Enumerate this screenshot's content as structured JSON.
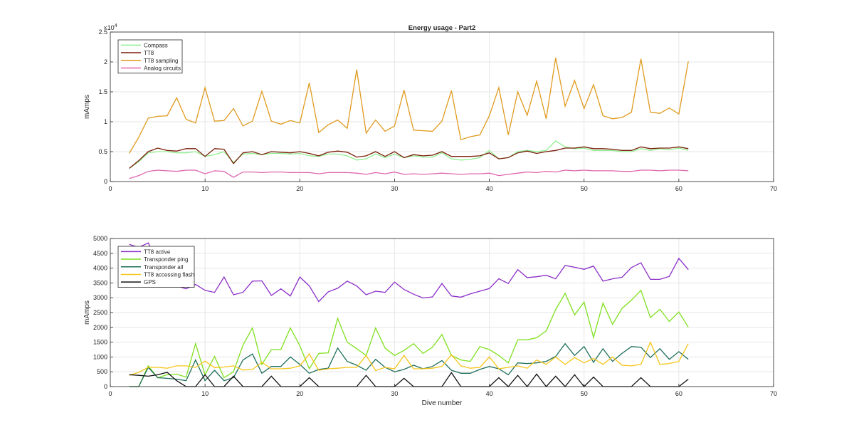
{
  "chart_data": [
    {
      "type": "line",
      "title": "Energy usage - Part2",
      "xlabel": "",
      "ylabel": "mAmps",
      "exponent_label": "×10",
      "exponent_power": "4",
      "xlim": [
        0,
        70
      ],
      "ylim": [
        0,
        2.5
      ],
      "x_ticks": [
        "0",
        "10",
        "20",
        "30",
        "40",
        "50",
        "60",
        "70"
      ],
      "y_ticks": [
        "0",
        "0.5",
        "1",
        "1.5",
        "2",
        "2.5"
      ],
      "grid": true,
      "legend_position": "top-left",
      "x": [
        2,
        3,
        4,
        5,
        6,
        7,
        8,
        9,
        10,
        11,
        12,
        13,
        14,
        15,
        16,
        17,
        18,
        19,
        20,
        21,
        22,
        23,
        24,
        25,
        26,
        27,
        28,
        29,
        30,
        31,
        32,
        33,
        34,
        35,
        36,
        37,
        38,
        39,
        40,
        41,
        42,
        43,
        44,
        45,
        46,
        47,
        48,
        49,
        50,
        51,
        52,
        53,
        54,
        55,
        56,
        57,
        58,
        59,
        60,
        61
      ],
      "series": [
        {
          "name": "Compass",
          "color": "#90ee90",
          "values": [
            0.22,
            0.33,
            0.48,
            0.5,
            0.5,
            0.48,
            0.48,
            0.5,
            0.42,
            0.45,
            0.5,
            0.32,
            0.46,
            0.47,
            0.45,
            0.47,
            0.47,
            0.46,
            0.47,
            0.43,
            0.42,
            0.46,
            0.46,
            0.43,
            0.36,
            0.38,
            0.46,
            0.4,
            0.46,
            0.4,
            0.43,
            0.41,
            0.41,
            0.48,
            0.38,
            0.36,
            0.37,
            0.4,
            0.52,
            0.38,
            0.4,
            0.5,
            0.52,
            0.5,
            0.52,
            0.68,
            0.58,
            0.55,
            0.56,
            0.52,
            0.52,
            0.52,
            0.5,
            0.5,
            0.55,
            0.52,
            0.55,
            0.53,
            0.56,
            0.52
          ]
        },
        {
          "name": "TT8",
          "color": "#7a1e0a",
          "values": [
            0.22,
            0.35,
            0.5,
            0.56,
            0.52,
            0.51,
            0.55,
            0.55,
            0.42,
            0.55,
            0.54,
            0.3,
            0.48,
            0.5,
            0.45,
            0.5,
            0.49,
            0.48,
            0.5,
            0.47,
            0.43,
            0.49,
            0.51,
            0.49,
            0.41,
            0.43,
            0.5,
            0.42,
            0.5,
            0.4,
            0.45,
            0.43,
            0.44,
            0.5,
            0.42,
            0.42,
            0.42,
            0.43,
            0.48,
            0.38,
            0.4,
            0.48,
            0.51,
            0.47,
            0.5,
            0.52,
            0.56,
            0.56,
            0.58,
            0.55,
            0.55,
            0.54,
            0.52,
            0.52,
            0.58,
            0.55,
            0.56,
            0.56,
            0.58,
            0.55
          ]
        },
        {
          "name": "TT8 sampling",
          "color": "#e09a1e",
          "values": [
            0.47,
            0.74,
            1.06,
            1.09,
            1.1,
            1.4,
            1.04,
            0.98,
            1.57,
            1.01,
            1.02,
            1.22,
            0.93,
            1.01,
            1.51,
            1.01,
            0.96,
            1.02,
            0.98,
            1.65,
            0.82,
            0.95,
            1.03,
            0.89,
            1.87,
            0.81,
            1.03,
            0.84,
            0.93,
            1.53,
            0.86,
            0.85,
            0.84,
            1.01,
            1.52,
            0.7,
            0.75,
            0.78,
            1.1,
            1.57,
            0.78,
            1.5,
            1.11,
            1.68,
            1.05,
            2.07,
            1.26,
            1.69,
            1.22,
            1.62,
            1.1,
            1.05,
            1.07,
            1.16,
            2.05,
            1.16,
            1.14,
            1.23,
            1.13,
            2.01
          ]
        },
        {
          "name": "Analog circuits",
          "color": "#e066b0",
          "values": [
            0.05,
            0.1,
            0.17,
            0.19,
            0.18,
            0.17,
            0.19,
            0.19,
            0.13,
            0.18,
            0.17,
            0.07,
            0.16,
            0.16,
            0.15,
            0.16,
            0.16,
            0.15,
            0.15,
            0.15,
            0.13,
            0.15,
            0.15,
            0.15,
            0.14,
            0.12,
            0.15,
            0.13,
            0.16,
            0.12,
            0.13,
            0.12,
            0.13,
            0.14,
            0.13,
            0.12,
            0.13,
            0.13,
            0.14,
            0.1,
            0.12,
            0.14,
            0.16,
            0.15,
            0.17,
            0.16,
            0.19,
            0.18,
            0.19,
            0.18,
            0.18,
            0.18,
            0.17,
            0.17,
            0.19,
            0.19,
            0.18,
            0.19,
            0.19,
            0.18
          ]
        }
      ]
    },
    {
      "type": "line",
      "title": "",
      "xlabel": "Dive number",
      "ylabel": "mAmps",
      "xlim": [
        0,
        70
      ],
      "ylim": [
        0,
        5000
      ],
      "x_ticks": [
        "0",
        "10",
        "20",
        "30",
        "40",
        "50",
        "60",
        "70"
      ],
      "y_ticks": [
        "0",
        "500",
        "1000",
        "1500",
        "2000",
        "2500",
        "3000",
        "3500",
        "4000",
        "4500",
        "5000"
      ],
      "grid": true,
      "legend_position": "top-left",
      "x": [
        2,
        3,
        4,
        5,
        6,
        7,
        8,
        9,
        10,
        11,
        12,
        13,
        14,
        15,
        16,
        17,
        18,
        19,
        20,
        21,
        22,
        23,
        24,
        25,
        26,
        27,
        28,
        29,
        30,
        31,
        32,
        33,
        34,
        35,
        36,
        37,
        38,
        39,
        40,
        41,
        42,
        43,
        44,
        45,
        46,
        47,
        48,
        49,
        50,
        51,
        52,
        53,
        54,
        55,
        56,
        57,
        58,
        59,
        60,
        61
      ],
      "series": [
        {
          "name": "TT8 active",
          "color": "#8b2fc9",
          "values": [
            4800,
            4700,
            4850,
            4200,
            4300,
            3400,
            3300,
            3450,
            3250,
            3180,
            3700,
            3100,
            3180,
            3560,
            3570,
            3080,
            3300,
            3060,
            3700,
            3400,
            2870,
            3200,
            3320,
            3560,
            3400,
            3100,
            3220,
            3180,
            3530,
            3280,
            3120,
            2990,
            3030,
            3480,
            3060,
            3020,
            3130,
            3220,
            3310,
            3640,
            3480,
            3950,
            3680,
            3710,
            3760,
            3640,
            4090,
            4030,
            3960,
            4070,
            3560,
            3640,
            3690,
            4020,
            4180,
            3620,
            3620,
            3720,
            4330,
            3950
          ]
        },
        {
          "name": "Transponder ping",
          "color": "#7fe01e",
          "values": [
            0,
            0,
            700,
            300,
            400,
            420,
            320,
            1450,
            400,
            1020,
            300,
            500,
            1400,
            1980,
            750,
            1250,
            1250,
            1980,
            1380,
            600,
            1120,
            1140,
            2300,
            1500,
            1280,
            1050,
            1980,
            1300,
            1050,
            1220,
            1450,
            1120,
            1330,
            1760,
            1050,
            900,
            850,
            1350,
            1250,
            1050,
            800,
            1580,
            1580,
            1650,
            1880,
            2600,
            3150,
            2420,
            2850,
            1660,
            2820,
            2100,
            2640,
            2920,
            3250,
            2330,
            2610,
            2200,
            2520,
            2000
          ]
        },
        {
          "name": "Transponder all",
          "color": "#1e6e5a",
          "values": [
            0,
            0,
            650,
            300,
            280,
            250,
            200,
            900,
            200,
            550,
            200,
            300,
            900,
            1100,
            450,
            680,
            680,
            1000,
            750,
            450,
            580,
            620,
            1300,
            850,
            720,
            550,
            920,
            650,
            500,
            580,
            720,
            600,
            680,
            880,
            550,
            450,
            450,
            580,
            680,
            600,
            400,
            800,
            780,
            800,
            850,
            1020,
            1450,
            1050,
            1350,
            820,
            1280,
            850,
            1120,
            1350,
            1330,
            980,
            1280,
            920,
            1180,
            920
          ]
        },
        {
          "name": "TT8 accessing flash",
          "color": "#f5c518",
          "values": [
            380,
            480,
            650,
            650,
            620,
            700,
            700,
            650,
            860,
            640,
            660,
            700,
            560,
            580,
            820,
            600,
            600,
            620,
            700,
            1100,
            550,
            600,
            620,
            650,
            650,
            1050,
            540,
            650,
            600,
            1050,
            600,
            600,
            620,
            680,
            1080,
            700,
            620,
            650,
            1000,
            600,
            650,
            700,
            620,
            900,
            750,
            1000,
            750,
            980,
            800,
            950,
            750,
            1000,
            720,
            700,
            750,
            1500,
            750,
            780,
            850,
            1450
          ]
        },
        {
          "name": "GPS",
          "color": "#111111",
          "values": [
            400,
            380,
            350,
            400,
            480,
            200,
            0,
            0,
            400,
            0,
            0,
            350,
            0,
            0,
            0,
            350,
            0,
            0,
            0,
            300,
            0,
            0,
            0,
            0,
            0,
            380,
            0,
            0,
            0,
            280,
            0,
            0,
            0,
            0,
            470,
            0,
            0,
            0,
            0,
            300,
            0,
            380,
            0,
            420,
            0,
            350,
            0,
            400,
            0,
            320,
            0,
            0,
            0,
            0,
            300,
            0,
            0,
            0,
            0,
            250
          ]
        }
      ]
    }
  ]
}
